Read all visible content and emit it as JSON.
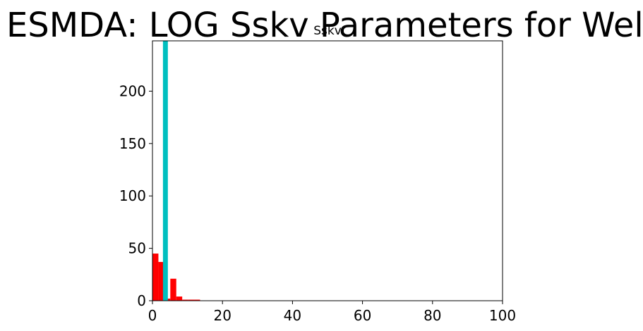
{
  "figure": {
    "suptitle": "ESMDA: LOG Sskv Parameters for Well"
  },
  "chart_data": {
    "type": "bar",
    "title": "Sskv",
    "xlabel": "",
    "ylabel": "",
    "xlim": [
      0,
      100
    ],
    "ylim": [
      0,
      248
    ],
    "grid": false,
    "x_ticks": [
      0,
      20,
      40,
      60,
      80,
      100
    ],
    "y_ticks": [
      0,
      50,
      100,
      150,
      200
    ],
    "histogram": {
      "color": "#ff0000",
      "bin_edges": [
        0,
        1.7,
        3.4,
        5.1,
        6.8,
        8.5,
        10.2,
        11.9,
        13.6
      ],
      "counts": [
        45,
        37,
        2,
        21,
        4,
        1,
        1,
        1
      ]
    },
    "marker_bar": {
      "color": "#00bfbf",
      "x_start": 3.0,
      "x_end": 4.4,
      "value": 248
    }
  }
}
